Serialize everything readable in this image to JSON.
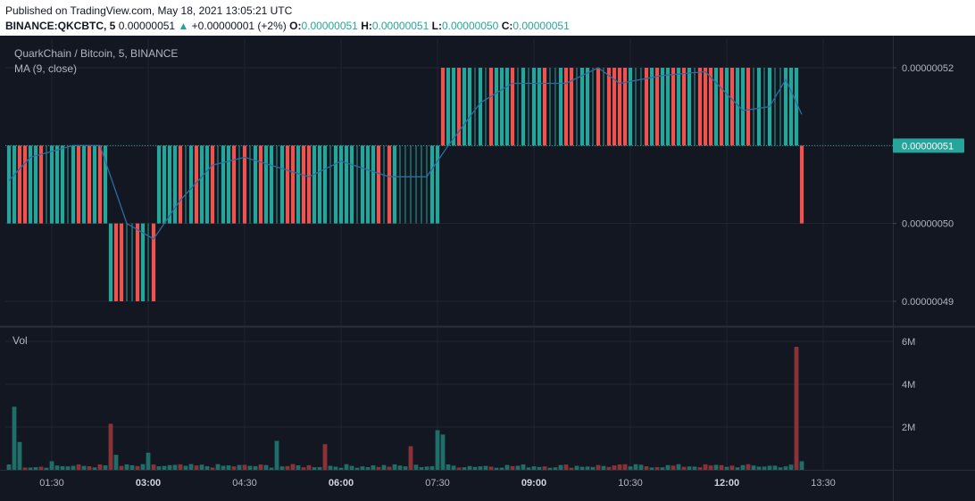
{
  "header": {
    "published": "Published on TradingView.com, May 18, 2021 13:05:21 UTC",
    "symbol": "BINANCE:QKCBTC, 5",
    "last": "0.00000051",
    "change_arrow": "▲",
    "change": "+0.00000001 (+2%)",
    "o_label": "O:",
    "o_value": "0.00000051",
    "h_label": "H:",
    "h_value": "0.00000051",
    "l_label": "L:",
    "l_value": "0.00000050",
    "c_label": "C:",
    "c_value": "0.00000051"
  },
  "legend": {
    "title": "QuarkChain / Bitcoin, 5, BINANCE",
    "ma": "MA (9, close)",
    "vol": "Vol"
  },
  "colors": {
    "background": "#131722",
    "grid": "#232632",
    "up": "#26a69a",
    "down": "#ef5350",
    "up_volume": "#1f6f68",
    "down_volume": "#8c3237",
    "ma": "#2f6c9e",
    "axis_text": "#b2b5be",
    "price_tag": "#26a69a"
  },
  "chart_data": {
    "type": "candlestick",
    "price_axis": {
      "ticks": [
        "0.00000052",
        "0.00000051",
        "0.00000050",
        "0.00000049"
      ],
      "ylim": [
        4.88e-07,
        5.245e-07
      ],
      "last_price_label": "0.00000051"
    },
    "volume_axis": {
      "ticks": [
        "6M",
        "4M",
        "2M"
      ],
      "ylim": [
        0,
        6000000
      ]
    },
    "time_axis": {
      "ticks": [
        "01:30",
        "03:00",
        "04:30",
        "06:00",
        "07:30",
        "09:00",
        "10:30",
        "12:00",
        "13:30"
      ],
      "bold_ticks": [
        "03:00",
        "06:00",
        "09:00",
        "12:00"
      ],
      "start": "00:50",
      "bar_minutes": 5
    },
    "segments": [
      {
        "from": "00:50",
        "to": "02:20",
        "low": 50,
        "high": 51,
        "pattern": "mixed"
      },
      {
        "from": "02:25",
        "to": "03:05",
        "low": 49,
        "high": 50,
        "pattern": "mixed"
      },
      {
        "from": "03:10",
        "to": "07:30",
        "low": 50,
        "high": 51,
        "pattern": "mixed"
      },
      {
        "from": "07:35",
        "to": "13:05",
        "low": 51,
        "high": 52,
        "pattern": "mixed"
      },
      {
        "from": "13:10",
        "to": "13:10",
        "low": 50,
        "high": 51,
        "pattern": "down"
      }
    ],
    "segment_units": "1e-8 BTC",
    "ma": {
      "period": 9,
      "source": "close",
      "points": [
        {
          "t": "00:50",
          "v": 50.55
        },
        {
          "t": "01:10",
          "v": 50.85
        },
        {
          "t": "01:50",
          "v": 51.0
        },
        {
          "t": "02:15",
          "v": 51.0
        },
        {
          "t": "02:25",
          "v": 50.6
        },
        {
          "t": "02:40",
          "v": 50.0
        },
        {
          "t": "03:05",
          "v": 49.8
        },
        {
          "t": "03:30",
          "v": 50.3
        },
        {
          "t": "04:00",
          "v": 50.75
        },
        {
          "t": "04:30",
          "v": 50.85
        },
        {
          "t": "05:30",
          "v": 50.6
        },
        {
          "t": "06:00",
          "v": 50.8
        },
        {
          "t": "06:45",
          "v": 50.6
        },
        {
          "t": "07:20",
          "v": 50.6
        },
        {
          "t": "07:40",
          "v": 51.0
        },
        {
          "t": "08:10",
          "v": 51.55
        },
        {
          "t": "08:40",
          "v": 51.8
        },
        {
          "t": "09:30",
          "v": 51.8
        },
        {
          "t": "10:00",
          "v": 52.0
        },
        {
          "t": "10:20",
          "v": 51.8
        },
        {
          "t": "11:00",
          "v": 51.9
        },
        {
          "t": "11:40",
          "v": 51.95
        },
        {
          "t": "12:15",
          "v": 51.45
        },
        {
          "t": "12:40",
          "v": 51.5
        },
        {
          "t": "12:55",
          "v": 51.85
        },
        {
          "t": "13:10",
          "v": 51.4
        }
      ]
    },
    "volume_spikes": [
      {
        "t": "00:55",
        "v": 2950000,
        "dir": "up"
      },
      {
        "t": "01:00",
        "v": 1300000,
        "dir": "up"
      },
      {
        "t": "01:30",
        "v": 400000,
        "dir": "up"
      },
      {
        "t": "02:25",
        "v": 2150000,
        "dir": "down"
      },
      {
        "t": "02:30",
        "v": 700000,
        "dir": "up"
      },
      {
        "t": "03:00",
        "v": 800000,
        "dir": "up"
      },
      {
        "t": "05:00",
        "v": 1350000,
        "dir": "up"
      },
      {
        "t": "05:45",
        "v": 1200000,
        "dir": "down"
      },
      {
        "t": "07:05",
        "v": 1100000,
        "dir": "down"
      },
      {
        "t": "07:30",
        "v": 1850000,
        "dir": "up"
      },
      {
        "t": "07:35",
        "v": 1650000,
        "dir": "up"
      },
      {
        "t": "13:05",
        "v": 5750000,
        "dir": "down"
      },
      {
        "t": "13:10",
        "v": 400000,
        "dir": "up"
      }
    ],
    "baseline_volume": 150000
  }
}
